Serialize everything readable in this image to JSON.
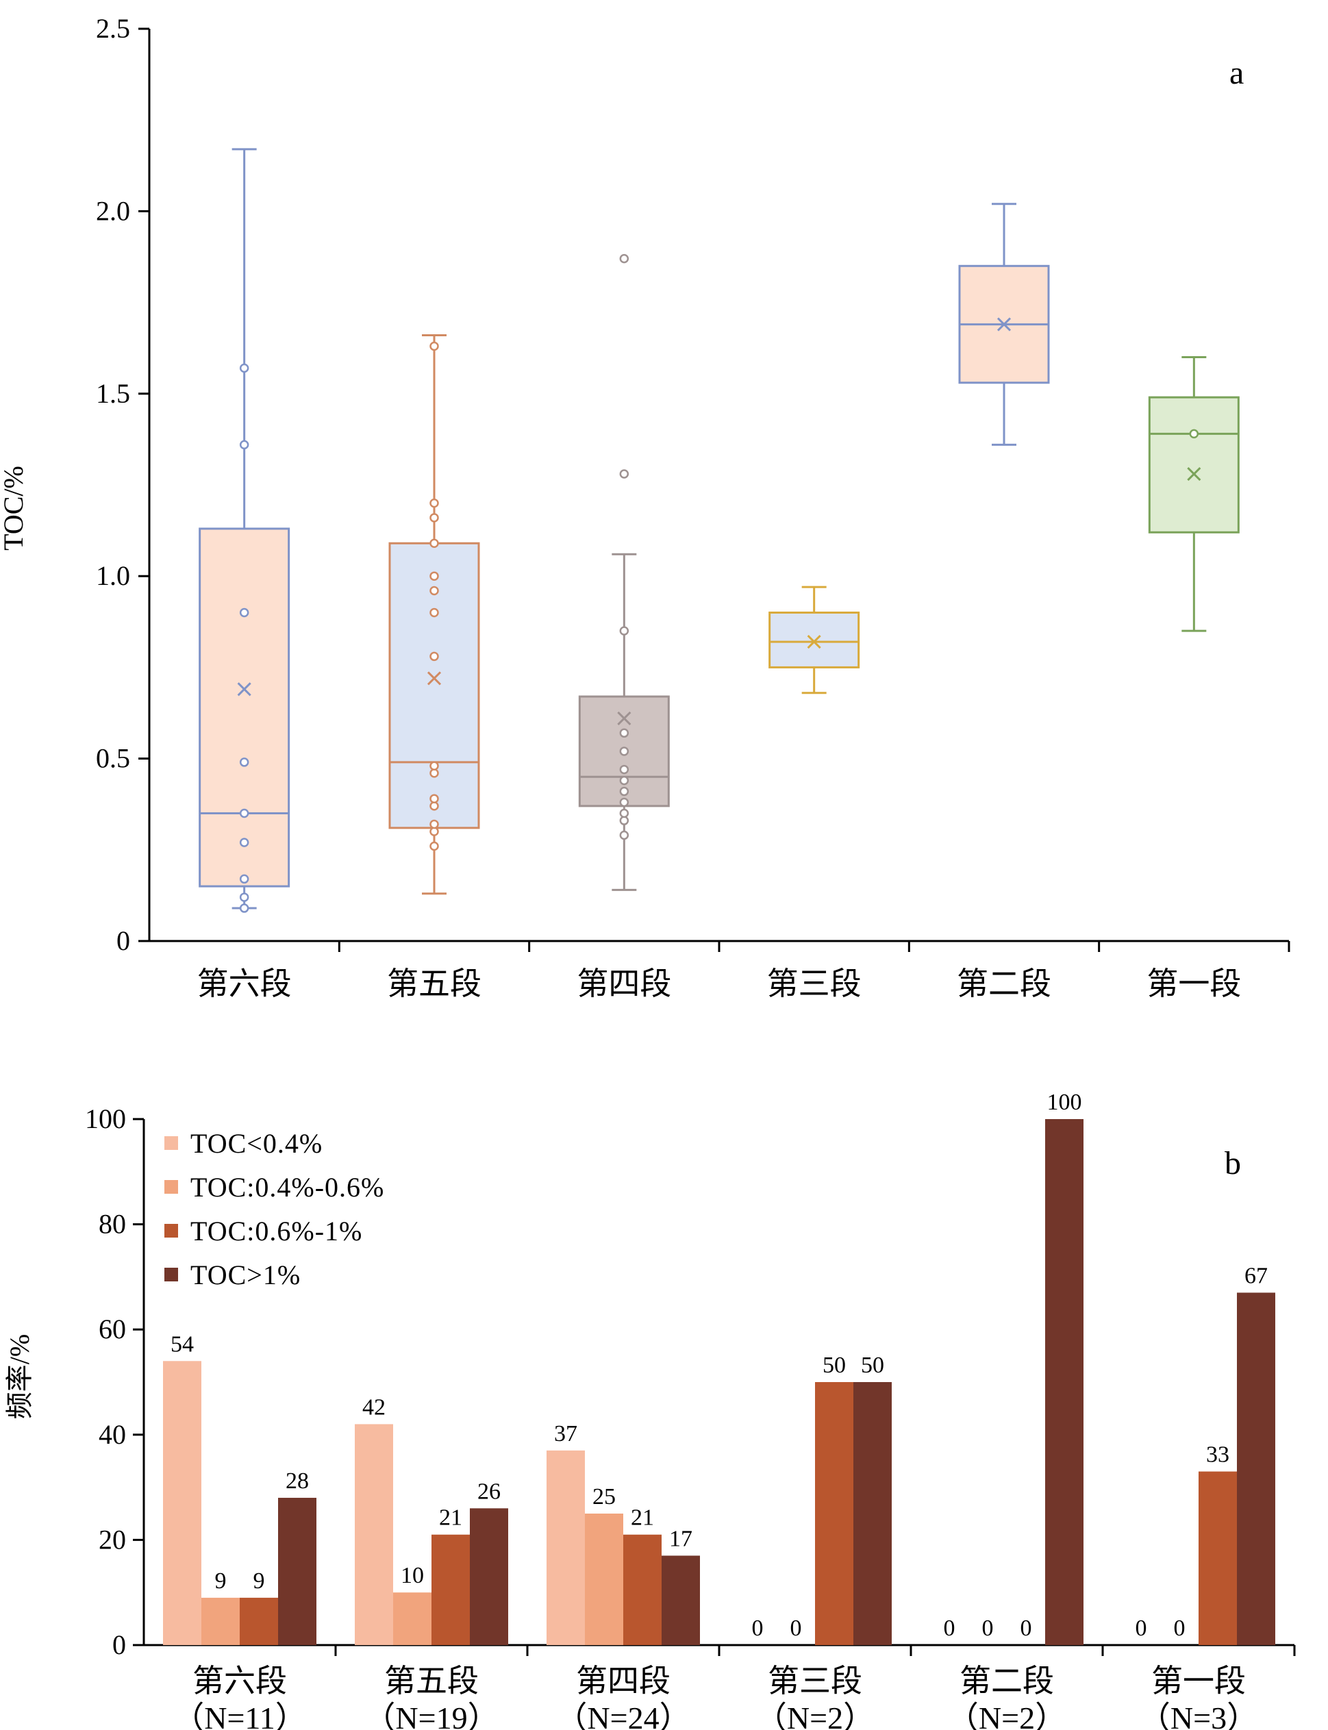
{
  "chart_data": [
    {
      "panel": "a",
      "type": "box",
      "ylabel": "TOC/%",
      "ylim": [
        0,
        2.5
      ],
      "yticks": [
        "0",
        "0.5",
        "1.0",
        "1.5",
        "2.0",
        "2.5"
      ],
      "categories": [
        "第六段",
        "第五段",
        "第四段",
        "第三段",
        "第二段",
        "第一段"
      ],
      "boxes": [
        {
          "category": "第六段",
          "min": 0.09,
          "q1": 0.15,
          "median": 0.35,
          "q3": 1.13,
          "max": 2.17,
          "mean": 0.69,
          "points": [
            0.09,
            0.12,
            0.17,
            0.27,
            0.35,
            0.49,
            0.9,
            1.36,
            1.57
          ],
          "stroke": "#7f93c8",
          "fill": "#fde0d0"
        },
        {
          "category": "第五段",
          "min": 0.13,
          "q1": 0.31,
          "median": 0.49,
          "q3": 1.09,
          "max": 1.66,
          "mean": 0.72,
          "points": [
            0.26,
            0.3,
            0.32,
            0.37,
            0.39,
            0.46,
            0.48,
            0.78,
            0.9,
            0.96,
            1.0,
            1.09,
            1.16,
            1.2,
            1.63
          ],
          "stroke": "#d18a62",
          "fill": "#dbe4f4"
        },
        {
          "category": "第四段",
          "min": 0.14,
          "q1": 0.37,
          "median": 0.45,
          "q3": 0.67,
          "max": 1.06,
          "mean": 0.61,
          "points": [
            0.29,
            0.33,
            0.35,
            0.38,
            0.41,
            0.44,
            0.47,
            0.52,
            0.57,
            0.85,
            1.28,
            1.87
          ],
          "stroke": "#9e9291",
          "fill": "#cfc3c1"
        },
        {
          "category": "第三段",
          "min": 0.68,
          "q1": 0.75,
          "median": 0.82,
          "q3": 0.9,
          "max": 0.97,
          "mean": 0.82,
          "points": [],
          "stroke": "#d9aa3c",
          "fill": "#dbe4f4"
        },
        {
          "category": "第二段",
          "min": 1.36,
          "q1": 1.53,
          "median": 1.69,
          "q3": 1.85,
          "max": 2.02,
          "mean": 1.69,
          "points": [],
          "stroke": "#7f93c8",
          "fill": "#fde0d0"
        },
        {
          "category": "第一段",
          "min": 0.85,
          "q1": 1.12,
          "median": 1.39,
          "q3": 1.49,
          "max": 1.6,
          "mean": 1.28,
          "points": [
            1.39
          ],
          "stroke": "#7aa35a",
          "fill": "#deecd1"
        }
      ]
    },
    {
      "panel": "b",
      "type": "bar",
      "ylabel": "频率/%",
      "ylim": [
        0,
        100
      ],
      "yticks": [
        "0",
        "20",
        "40",
        "60",
        "80",
        "100"
      ],
      "categories": [
        "第六段",
        "第五段",
        "第四段",
        "第三段",
        "第二段",
        "第一段"
      ],
      "sample_sizes": [
        "（N=11）",
        "（N=19）",
        "（N=24）",
        "（N=2）",
        "（N=2）",
        "（N=3）"
      ],
      "legend_position": "top-left",
      "series": [
        {
          "name": "TOC<0.4%",
          "color": "#f7bba0",
          "values": [
            54,
            42,
            37,
            0,
            0,
            0
          ]
        },
        {
          "name": "TOC:0.4%-0.6%",
          "color": "#f1a47d",
          "values": [
            9,
            10,
            25,
            0,
            0,
            0
          ]
        },
        {
          "name": "TOC:0.6%-1%",
          "color": "#b9562e",
          "values": [
            9,
            21,
            21,
            50,
            0,
            33
          ]
        },
        {
          "name": "TOC>1%",
          "color": "#72362a",
          "values": [
            28,
            26,
            17,
            50,
            100,
            67
          ]
        }
      ]
    }
  ]
}
